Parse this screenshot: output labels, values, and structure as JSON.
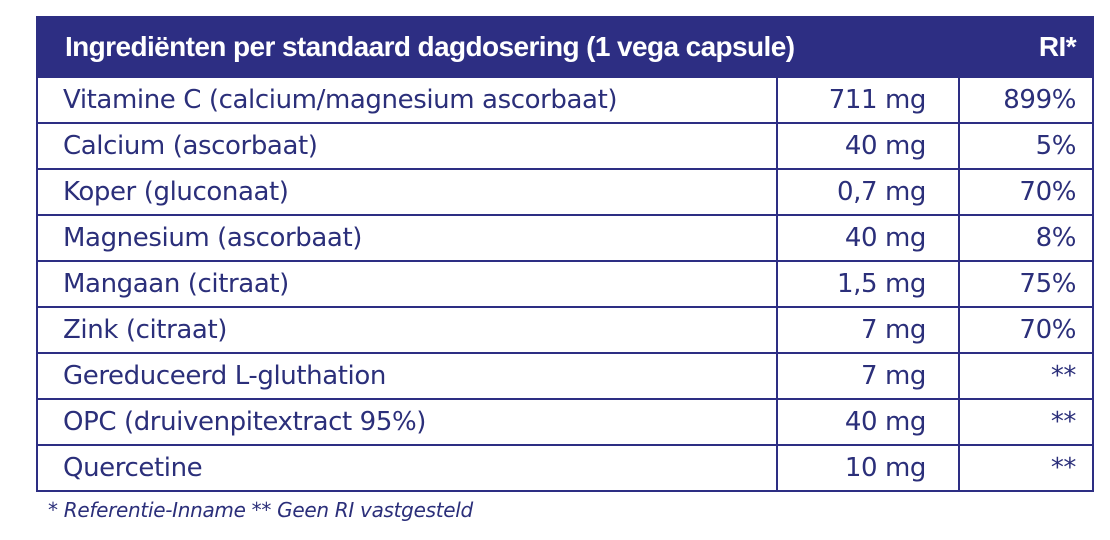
{
  "table": {
    "header": {
      "ingredient": "Ingrediënten per standaard dagdosering (1 vega capsule)",
      "ri": "RI*"
    },
    "rows": [
      {
        "name": "Vitamine C (calcium/magnesium ascorbaat)",
        "amount": "711 mg",
        "ri": "899%"
      },
      {
        "name": "Calcium (ascorbaat)",
        "amount": "40 mg",
        "ri": "5%"
      },
      {
        "name": "Koper (gluconaat)",
        "amount": "0,7 mg",
        "ri": "70%"
      },
      {
        "name": "Magnesium (ascorbaat)",
        "amount": "40 mg",
        "ri": "8%"
      },
      {
        "name": "Mangaan (citraat)",
        "amount": "1,5 mg",
        "ri": "75%"
      },
      {
        "name": "Zink (citraat)",
        "amount": "7 mg",
        "ri": "70%"
      },
      {
        "name": "Gereduceerd L-gluthation",
        "amount": "7 mg",
        "ri": "**"
      },
      {
        "name": "OPC (druivenpitextract 95%)",
        "amount": "40 mg",
        "ri": "**"
      },
      {
        "name": "Quercetine",
        "amount": "10 mg",
        "ri": "**"
      }
    ]
  },
  "footnote": "* Referentie-Inname ** Geen RI vastgesteld",
  "colors": {
    "header_bg": "#2d2e83",
    "header_text": "#ffffff",
    "text": "#2b2f7a",
    "border": "#2d2e83"
  }
}
